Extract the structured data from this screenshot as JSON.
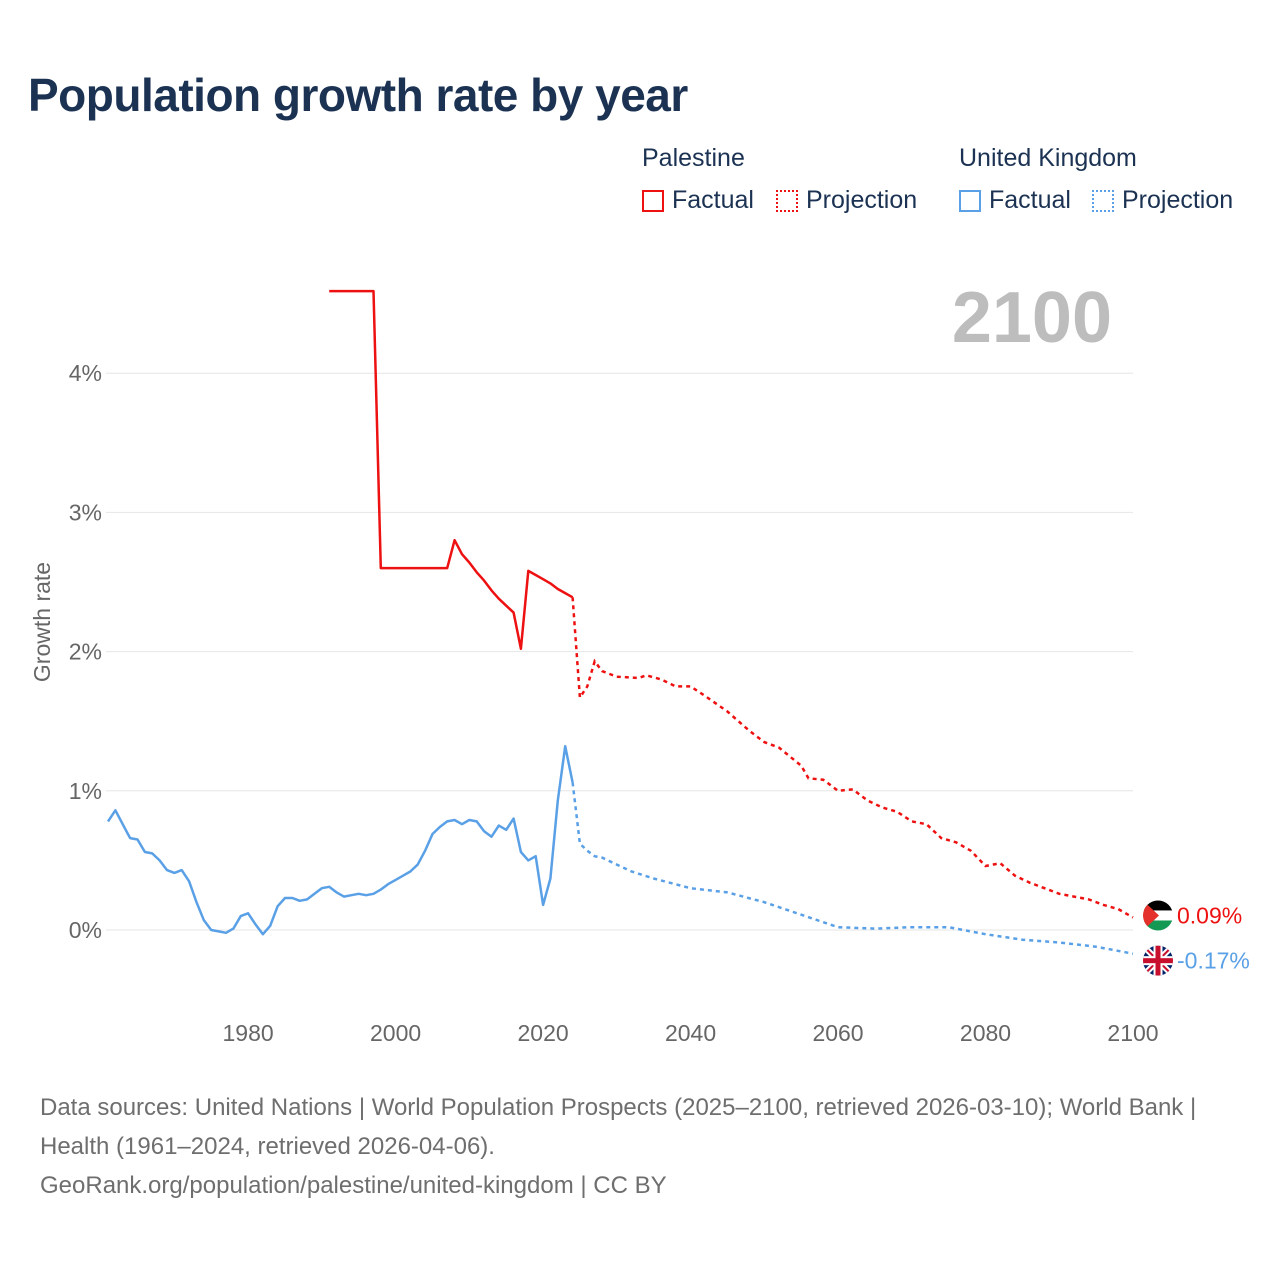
{
  "title": "Population growth rate by year",
  "legend": {
    "groups": [
      {
        "name": "Palestine",
        "factual_label": "Factual",
        "projection_label": "Projection",
        "color": "#ee1111"
      },
      {
        "name": "United Kingdom",
        "factual_label": "Factual",
        "projection_label": "Projection",
        "color": "#5aa0e6"
      }
    ]
  },
  "footer": {
    "sources": "Data sources: United Nations | World Population Prospects (2025–2100, retrieved 2026-03-10); World Bank | Health (1961–2024, retrieved 2026-04-06).",
    "link": "GeoRank.org/population/palestine/united-kingdom | CC BY"
  },
  "chart_data": {
    "type": "line",
    "title": "Population growth rate by year",
    "ylabel": "Growth rate",
    "xlabel": "",
    "xlim": [
      1961,
      2100
    ],
    "ylim": [
      -0.5,
      4.6
    ],
    "x_ticks": [
      1980,
      2000,
      2020,
      2040,
      2060,
      2080,
      2100
    ],
    "x_tick_labels": [
      "1980",
      "2000",
      "2020",
      "2040",
      "2060",
      "2080",
      "2100"
    ],
    "y_ticks": [
      0,
      1,
      2,
      3,
      4
    ],
    "y_tick_labels": [
      "0%",
      "1%",
      "2%",
      "3%",
      "4%"
    ],
    "grid": true,
    "year_label": "2100",
    "series": [
      {
        "name": "Palestine",
        "color": "#ee1111",
        "end_label": "0.09%",
        "flag": "palestine-flag",
        "factual": {
          "x": [
            1991,
            1997,
            1998,
            2007,
            2008,
            2009,
            2010,
            2011,
            2012,
            2013,
            2014,
            2015,
            2016,
            2017,
            2018,
            2019,
            2020,
            2021,
            2022,
            2023,
            2024
          ],
          "y": [
            4.59,
            4.59,
            2.6,
            2.6,
            2.8,
            2.7,
            2.64,
            2.57,
            2.51,
            2.44,
            2.38,
            2.33,
            2.28,
            2.02,
            2.58,
            2.55,
            2.52,
            2.49,
            2.45,
            2.42,
            2.39
          ]
        },
        "projection": {
          "x": [
            2024,
            2025,
            2026,
            2027,
            2028,
            2030,
            2033,
            2034,
            2036,
            2038,
            2040,
            2042,
            2045,
            2048,
            2050,
            2052,
            2055,
            2056,
            2058,
            2060,
            2062,
            2064,
            2066,
            2068,
            2070,
            2072,
            2074,
            2076,
            2078,
            2080,
            2082,
            2084,
            2086,
            2088,
            2090,
            2092,
            2094,
            2096,
            2098,
            2100
          ],
          "y": [
            2.39,
            1.67,
            1.75,
            1.93,
            1.86,
            1.82,
            1.81,
            1.83,
            1.8,
            1.75,
            1.75,
            1.68,
            1.57,
            1.43,
            1.35,
            1.31,
            1.18,
            1.09,
            1.08,
            1.0,
            1.01,
            0.93,
            0.88,
            0.85,
            0.78,
            0.76,
            0.66,
            0.63,
            0.57,
            0.46,
            0.48,
            0.39,
            0.34,
            0.3,
            0.26,
            0.24,
            0.22,
            0.18,
            0.15,
            0.09
          ]
        }
      },
      {
        "name": "United Kingdom",
        "color": "#5aa0e6",
        "end_label": "-0.17%",
        "flag": "uk-flag",
        "factual": {
          "x": [
            1961,
            1962,
            1963,
            1964,
            1965,
            1966,
            1967,
            1968,
            1969,
            1970,
            1971,
            1972,
            1973,
            1974,
            1975,
            1976,
            1977,
            1978,
            1979,
            1980,
            1981,
            1982,
            1983,
            1984,
            1985,
            1986,
            1987,
            1988,
            1989,
            1990,
            1991,
            1992,
            1993,
            1994,
            1995,
            1996,
            1997,
            1998,
            1999,
            2000,
            2001,
            2002,
            2003,
            2004,
            2005,
            2006,
            2007,
            2008,
            2009,
            2010,
            2011,
            2012,
            2013,
            2014,
            2015,
            2016,
            2017,
            2018,
            2019,
            2020,
            2021,
            2022,
            2023,
            2024
          ],
          "y": [
            0.78,
            0.86,
            0.76,
            0.66,
            0.65,
            0.56,
            0.55,
            0.5,
            0.43,
            0.41,
            0.43,
            0.35,
            0.2,
            0.07,
            0.0,
            -0.01,
            -0.02,
            0.01,
            0.1,
            0.12,
            0.04,
            -0.03,
            0.03,
            0.17,
            0.23,
            0.23,
            0.21,
            0.22,
            0.26,
            0.3,
            0.31,
            0.27,
            0.24,
            0.25,
            0.26,
            0.25,
            0.26,
            0.29,
            0.33,
            0.36,
            0.39,
            0.42,
            0.47,
            0.57,
            0.69,
            0.74,
            0.78,
            0.79,
            0.76,
            0.79,
            0.78,
            0.71,
            0.67,
            0.75,
            0.72,
            0.8,
            0.56,
            0.5,
            0.53,
            0.18,
            0.37,
            0.93,
            1.32,
            1.06
          ]
        },
        "projection": {
          "x": [
            2024,
            2025,
            2026,
            2027,
            2028,
            2030,
            2032,
            2035,
            2040,
            2045,
            2050,
            2055,
            2060,
            2065,
            2070,
            2075,
            2080,
            2085,
            2090,
            2095,
            2100
          ],
          "y": [
            1.06,
            0.62,
            0.57,
            0.53,
            0.52,
            0.47,
            0.42,
            0.37,
            0.3,
            0.27,
            0.2,
            0.11,
            0.02,
            0.01,
            0.02,
            0.02,
            -0.03,
            -0.07,
            -0.09,
            -0.12,
            -0.17
          ]
        }
      }
    ]
  }
}
